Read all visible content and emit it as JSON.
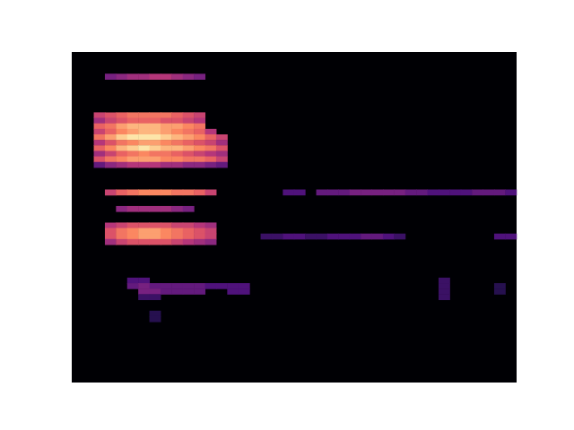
{
  "chart_data": {
    "type": "heatmap",
    "tick_labels": false,
    "columns": 40,
    "rows": 60,
    "color_range": [
      0,
      1
    ],
    "cells": [
      [
        3,
        55,
        0.35
      ],
      [
        4,
        55,
        0.4
      ],
      [
        5,
        55,
        0.45
      ],
      [
        6,
        55,
        0.45
      ],
      [
        7,
        55,
        0.5
      ],
      [
        8,
        55,
        0.5
      ],
      [
        9,
        55,
        0.45
      ],
      [
        10,
        55,
        0.4
      ],
      [
        11,
        55,
        0.35
      ],
      [
        2,
        48,
        0.55
      ],
      [
        3,
        48,
        0.6
      ],
      [
        4,
        48,
        0.65
      ],
      [
        5,
        48,
        0.7
      ],
      [
        6,
        48,
        0.7
      ],
      [
        7,
        48,
        0.7
      ],
      [
        8,
        48,
        0.7
      ],
      [
        9,
        48,
        0.65
      ],
      [
        10,
        48,
        0.6
      ],
      [
        11,
        48,
        0.55
      ],
      [
        2,
        47,
        0.45
      ],
      [
        3,
        47,
        0.55
      ],
      [
        4,
        47,
        0.6
      ],
      [
        5,
        47,
        0.65
      ],
      [
        6,
        47,
        0.65
      ],
      [
        7,
        47,
        0.65
      ],
      [
        8,
        47,
        0.6
      ],
      [
        9,
        47,
        0.6
      ],
      [
        10,
        47,
        0.55
      ],
      [
        11,
        47,
        0.5
      ],
      [
        2,
        46,
        0.65
      ],
      [
        3,
        46,
        0.7
      ],
      [
        4,
        46,
        0.8
      ],
      [
        5,
        46,
        0.85
      ],
      [
        6,
        46,
        0.85
      ],
      [
        7,
        46,
        0.85
      ],
      [
        8,
        46,
        0.8
      ],
      [
        9,
        46,
        0.8
      ],
      [
        10,
        46,
        0.75
      ],
      [
        11,
        46,
        0.7
      ],
      [
        2,
        45,
        0.55
      ],
      [
        3,
        45,
        0.65
      ],
      [
        4,
        45,
        0.75
      ],
      [
        5,
        45,
        0.8
      ],
      [
        6,
        45,
        0.85
      ],
      [
        7,
        45,
        0.85
      ],
      [
        8,
        45,
        0.8
      ],
      [
        9,
        45,
        0.75
      ],
      [
        10,
        45,
        0.7
      ],
      [
        11,
        45,
        0.65
      ],
      [
        12,
        45,
        0.5
      ],
      [
        2,
        44,
        0.7
      ],
      [
        3,
        44,
        0.8
      ],
      [
        4,
        44,
        0.9
      ],
      [
        5,
        44,
        0.95
      ],
      [
        6,
        44,
        0.95
      ],
      [
        7,
        44,
        0.95
      ],
      [
        8,
        44,
        0.9
      ],
      [
        9,
        44,
        0.85
      ],
      [
        10,
        44,
        0.8
      ],
      [
        11,
        44,
        0.75
      ],
      [
        12,
        44,
        0.65
      ],
      [
        13,
        44,
        0.55
      ],
      [
        2,
        43,
        0.5
      ],
      [
        3,
        43,
        0.6
      ],
      [
        4,
        43,
        0.7
      ],
      [
        5,
        43,
        0.75
      ],
      [
        6,
        43,
        0.8
      ],
      [
        7,
        43,
        0.8
      ],
      [
        8,
        43,
        0.75
      ],
      [
        9,
        43,
        0.7
      ],
      [
        10,
        43,
        0.65
      ],
      [
        11,
        43,
        0.6
      ],
      [
        12,
        43,
        0.55
      ],
      [
        13,
        43,
        0.45
      ],
      [
        2,
        42,
        0.65
      ],
      [
        3,
        42,
        0.75
      ],
      [
        4,
        42,
        0.85
      ],
      [
        5,
        42,
        0.9
      ],
      [
        6,
        42,
        0.95
      ],
      [
        7,
        42,
        0.9
      ],
      [
        8,
        42,
        0.85
      ],
      [
        9,
        42,
        0.85
      ],
      [
        10,
        42,
        0.8
      ],
      [
        11,
        42,
        0.75
      ],
      [
        12,
        42,
        0.7
      ],
      [
        13,
        42,
        0.6
      ],
      [
        2,
        41,
        0.45
      ],
      [
        3,
        41,
        0.55
      ],
      [
        4,
        41,
        0.65
      ],
      [
        5,
        41,
        0.7
      ],
      [
        6,
        41,
        0.75
      ],
      [
        7,
        41,
        0.7
      ],
      [
        8,
        41,
        0.7
      ],
      [
        9,
        41,
        0.65
      ],
      [
        10,
        41,
        0.6
      ],
      [
        11,
        41,
        0.55
      ],
      [
        12,
        41,
        0.5
      ],
      [
        13,
        41,
        0.45
      ],
      [
        2,
        40,
        0.6
      ],
      [
        3,
        40,
        0.7
      ],
      [
        4,
        40,
        0.75
      ],
      [
        5,
        40,
        0.8
      ],
      [
        6,
        40,
        0.8
      ],
      [
        7,
        40,
        0.8
      ],
      [
        8,
        40,
        0.75
      ],
      [
        9,
        40,
        0.75
      ],
      [
        10,
        40,
        0.7
      ],
      [
        11,
        40,
        0.7
      ],
      [
        12,
        40,
        0.65
      ],
      [
        13,
        40,
        0.55
      ],
      [
        2,
        39,
        0.3
      ],
      [
        3,
        39,
        0.4
      ],
      [
        4,
        39,
        0.45
      ],
      [
        5,
        39,
        0.5
      ],
      [
        6,
        39,
        0.5
      ],
      [
        7,
        39,
        0.5
      ],
      [
        8,
        39,
        0.45
      ],
      [
        9,
        39,
        0.45
      ],
      [
        10,
        39,
        0.4
      ],
      [
        11,
        39,
        0.4
      ],
      [
        12,
        39,
        0.35
      ],
      [
        13,
        39,
        0.3
      ],
      [
        3,
        34,
        0.55
      ],
      [
        4,
        34,
        0.65
      ],
      [
        5,
        34,
        0.7
      ],
      [
        6,
        34,
        0.75
      ],
      [
        7,
        34,
        0.75
      ],
      [
        8,
        34,
        0.75
      ],
      [
        9,
        34,
        0.7
      ],
      [
        10,
        34,
        0.7
      ],
      [
        11,
        34,
        0.65
      ],
      [
        12,
        34,
        0.55
      ],
      [
        19,
        34,
        0.25
      ],
      [
        20,
        34,
        0.25
      ],
      [
        22,
        34,
        0.3
      ],
      [
        23,
        34,
        0.3
      ],
      [
        24,
        34,
        0.3
      ],
      [
        25,
        34,
        0.35
      ],
      [
        26,
        34,
        0.35
      ],
      [
        27,
        34,
        0.35
      ],
      [
        28,
        34,
        0.35
      ],
      [
        29,
        34,
        0.35
      ],
      [
        30,
        34,
        0.3
      ],
      [
        31,
        34,
        0.3
      ],
      [
        32,
        34,
        0.25
      ],
      [
        33,
        34,
        0.25
      ],
      [
        34,
        34,
        0.25
      ],
      [
        35,
        34,
        0.25
      ],
      [
        36,
        34,
        0.3
      ],
      [
        37,
        34,
        0.3
      ],
      [
        38,
        34,
        0.3
      ],
      [
        39,
        34,
        0.25
      ],
      [
        4,
        31,
        0.4
      ],
      [
        5,
        31,
        0.45
      ],
      [
        6,
        31,
        0.45
      ],
      [
        7,
        31,
        0.45
      ],
      [
        8,
        31,
        0.45
      ],
      [
        9,
        31,
        0.4
      ],
      [
        10,
        31,
        0.35
      ],
      [
        3,
        28,
        0.5
      ],
      [
        4,
        28,
        0.55
      ],
      [
        5,
        28,
        0.6
      ],
      [
        6,
        28,
        0.6
      ],
      [
        7,
        28,
        0.6
      ],
      [
        8,
        28,
        0.6
      ],
      [
        9,
        28,
        0.55
      ],
      [
        10,
        28,
        0.55
      ],
      [
        11,
        28,
        0.5
      ],
      [
        12,
        28,
        0.45
      ],
      [
        3,
        27,
        0.6
      ],
      [
        4,
        27,
        0.7
      ],
      [
        5,
        27,
        0.75
      ],
      [
        6,
        27,
        0.8
      ],
      [
        7,
        27,
        0.8
      ],
      [
        8,
        27,
        0.75
      ],
      [
        9,
        27,
        0.7
      ],
      [
        10,
        27,
        0.65
      ],
      [
        11,
        27,
        0.6
      ],
      [
        12,
        27,
        0.55
      ],
      [
        3,
        26,
        0.6
      ],
      [
        4,
        26,
        0.7
      ],
      [
        5,
        26,
        0.75
      ],
      [
        6,
        26,
        0.8
      ],
      [
        7,
        26,
        0.8
      ],
      [
        8,
        26,
        0.75
      ],
      [
        9,
        26,
        0.7
      ],
      [
        10,
        26,
        0.65
      ],
      [
        11,
        26,
        0.6
      ],
      [
        12,
        26,
        0.55
      ],
      [
        3,
        25,
        0.45
      ],
      [
        4,
        25,
        0.55
      ],
      [
        5,
        25,
        0.6
      ],
      [
        6,
        25,
        0.6
      ],
      [
        7,
        25,
        0.6
      ],
      [
        8,
        25,
        0.6
      ],
      [
        9,
        25,
        0.55
      ],
      [
        10,
        25,
        0.5
      ],
      [
        11,
        25,
        0.45
      ],
      [
        12,
        25,
        0.4
      ],
      [
        17,
        26,
        0.2
      ],
      [
        18,
        26,
        0.2
      ],
      [
        19,
        26,
        0.25
      ],
      [
        20,
        26,
        0.25
      ],
      [
        21,
        26,
        0.2
      ],
      [
        22,
        26,
        0.2
      ],
      [
        23,
        26,
        0.25
      ],
      [
        24,
        26,
        0.25
      ],
      [
        25,
        26,
        0.25
      ],
      [
        26,
        26,
        0.3
      ],
      [
        27,
        26,
        0.3
      ],
      [
        28,
        26,
        0.25
      ],
      [
        29,
        26,
        0.2
      ],
      [
        38,
        26,
        0.25
      ],
      [
        39,
        26,
        0.25
      ],
      [
        5,
        18,
        0.25
      ],
      [
        6,
        18,
        0.25
      ],
      [
        5,
        17,
        0.3
      ],
      [
        6,
        17,
        0.35
      ],
      [
        7,
        17,
        0.3
      ],
      [
        8,
        17,
        0.3
      ],
      [
        9,
        17,
        0.3
      ],
      [
        10,
        17,
        0.3
      ],
      [
        11,
        17,
        0.3
      ],
      [
        12,
        17,
        0.25
      ],
      [
        13,
        17,
        0.25
      ],
      [
        14,
        17,
        0.25
      ],
      [
        15,
        17,
        0.25
      ],
      [
        6,
        16,
        0.35
      ],
      [
        7,
        16,
        0.35
      ],
      [
        8,
        16,
        0.3
      ],
      [
        9,
        16,
        0.3
      ],
      [
        10,
        16,
        0.3
      ],
      [
        11,
        16,
        0.3
      ],
      [
        14,
        16,
        0.25
      ],
      [
        15,
        16,
        0.25
      ],
      [
        6,
        15,
        0.2
      ],
      [
        7,
        15,
        0.2
      ],
      [
        33,
        18,
        0.2
      ],
      [
        33,
        17,
        0.2
      ],
      [
        33,
        16,
        0.2
      ],
      [
        33,
        15,
        0.2
      ],
      [
        38,
        17,
        0.15
      ],
      [
        38,
        16,
        0.15
      ],
      [
        7,
        12,
        0.15
      ],
      [
        7,
        11,
        0.15
      ]
    ]
  }
}
